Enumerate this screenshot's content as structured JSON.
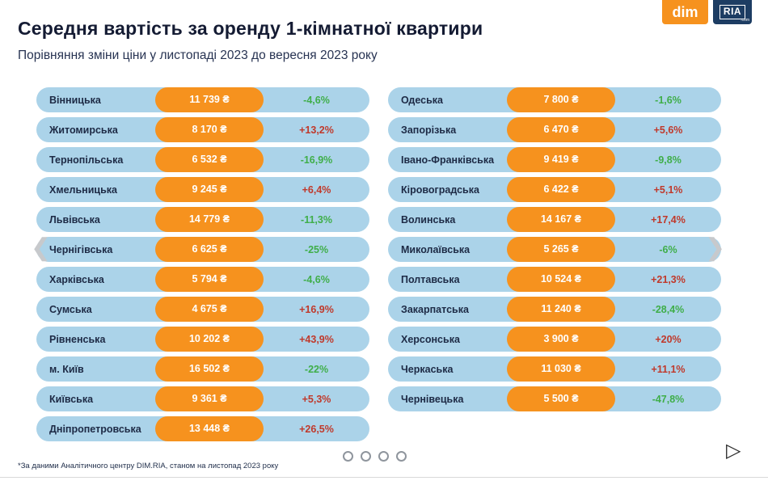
{
  "header": {
    "title": "Середня вартість за оренду 1-кімнатної квартири",
    "subtitle": "Порівняння зміни ціни у листопаді 2023 до вересня 2023 року"
  },
  "logos": {
    "dim": "dim",
    "ria": "RIA",
    "ria_suffix": ".com"
  },
  "chart_data": {
    "type": "table",
    "columns": [
      "region",
      "price",
      "change"
    ],
    "currency": "₴",
    "left": [
      {
        "region": "Вінницька",
        "price": "11 739 ₴",
        "price_value": 11739,
        "change": "-4,6%",
        "change_value": -4.6
      },
      {
        "region": "Житомирська",
        "price": "8 170 ₴",
        "price_value": 8170,
        "change": "+13,2%",
        "change_value": 13.2
      },
      {
        "region": "Тернопільська",
        "price": "6 532 ₴",
        "price_value": 6532,
        "change": "-16,9%",
        "change_value": -16.9
      },
      {
        "region": "Хмельницька",
        "price": "9 245 ₴",
        "price_value": 9245,
        "change": "+6,4%",
        "change_value": 6.4
      },
      {
        "region": "Львівська",
        "price": "14 779 ₴",
        "price_value": 14779,
        "change": "-11,3%",
        "change_value": -11.3
      },
      {
        "region": "Чернігівська",
        "price": "6 625 ₴",
        "price_value": 6625,
        "change": "-25%",
        "change_value": -25
      },
      {
        "region": "Харківська",
        "price": "5 794 ₴",
        "price_value": 5794,
        "change": "-4,6%",
        "change_value": -4.6
      },
      {
        "region": "Сумська",
        "price": "4 675 ₴",
        "price_value": 4675,
        "change": "+16,9%",
        "change_value": 16.9
      },
      {
        "region": "Рівненська",
        "price": "10 202 ₴",
        "price_value": 10202,
        "change": "+43,9%",
        "change_value": 43.9
      },
      {
        "region": "м. Київ",
        "price": "16 502 ₴",
        "price_value": 16502,
        "change": "-22%",
        "change_value": -22
      },
      {
        "region": "Київська",
        "price": "9 361 ₴",
        "price_value": 9361,
        "change": "+5,3%",
        "change_value": 5.3
      },
      {
        "region": "Дніпропетровська",
        "price": "13 448 ₴",
        "price_value": 13448,
        "change": "+26,5%",
        "change_value": 26.5
      }
    ],
    "right": [
      {
        "region": "Одеська",
        "price": "7 800 ₴",
        "price_value": 7800,
        "change": "-1,6%",
        "change_value": -1.6
      },
      {
        "region": "Запорізька",
        "price": "6 470 ₴",
        "price_value": 6470,
        "change": "+5,6%",
        "change_value": 5.6
      },
      {
        "region": "Івано-Франківська",
        "price": "9 419 ₴",
        "price_value": 9419,
        "change": "-9,8%",
        "change_value": -9.8
      },
      {
        "region": "Кіровоградська",
        "price": "6 422 ₴",
        "price_value": 6422,
        "change": "+5,1%",
        "change_value": 5.1
      },
      {
        "region": "Волинська",
        "price": "14 167 ₴",
        "price_value": 14167,
        "change": "+17,4%",
        "change_value": 17.4
      },
      {
        "region": "Миколаївська",
        "price": "5 265 ₴",
        "price_value": 5265,
        "change": "-6%",
        "change_value": -6
      },
      {
        "region": "Полтавська",
        "price": "10 524 ₴",
        "price_value": 10524,
        "change": "+21,3%",
        "change_value": 21.3
      },
      {
        "region": "Закарпатська",
        "price": "11 240 ₴",
        "price_value": 11240,
        "change": "-28,4%",
        "change_value": -28.4
      },
      {
        "region": "Херсонська",
        "price": "3 900 ₴",
        "price_value": 3900,
        "change": "+20%",
        "change_value": 20
      },
      {
        "region": "Черкаська",
        "price": "11 030 ₴",
        "price_value": 11030,
        "change": "+11,1%",
        "change_value": 11.1
      },
      {
        "region": "Чернівецька",
        "price": "5 500 ₴",
        "price_value": 5500,
        "change": "-47,8%",
        "change_value": -47.8
      }
    ]
  },
  "carousel": {
    "dot_count": 4,
    "prev_icon": "❮",
    "next_icon": "❯",
    "play_icon": "▷"
  },
  "footer": {
    "note": "*За даними Аналітичного центру DIM.RIA, станом на листопад 2023 року"
  },
  "colors": {
    "row_bg": "#abd3e9",
    "price_bg": "#f6921e",
    "positive_change": "#c0392b",
    "negative_change": "#3fae49",
    "title": "#141b33",
    "ria_navy": "#1d3d63"
  }
}
